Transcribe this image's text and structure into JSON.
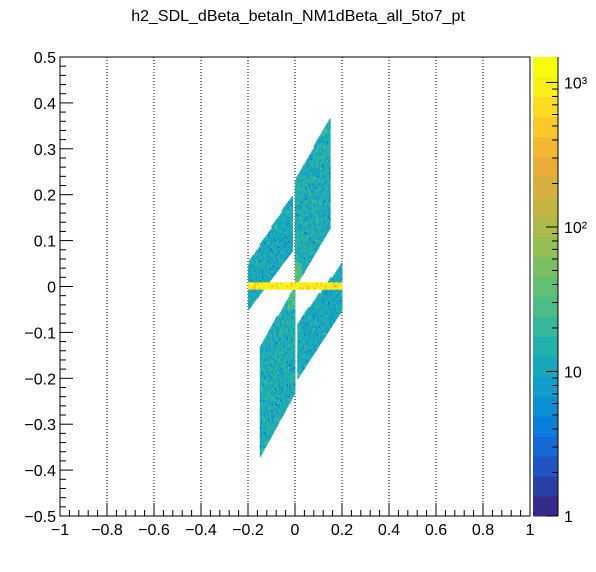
{
  "chart_data": {
    "type": "heatmap",
    "title": "h2_SDL_dBeta_betaIn_NM1dBeta_all_5to7_pt",
    "xlabel": "",
    "ylabel": "",
    "xlim": [
      -1,
      1
    ],
    "ylim": [
      -0.5,
      0.5
    ],
    "x_ticks": [
      -1,
      -0.8,
      -0.6,
      -0.4,
      -0.2,
      0,
      0.2,
      0.4,
      0.6,
      0.8,
      1
    ],
    "x_tick_labels": [
      "−1",
      "−0.8",
      "−0.6",
      "−0.4",
      "−0.2",
      "0",
      "0.2",
      "0.4",
      "0.6",
      "0.8",
      "1"
    ],
    "y_ticks": [
      -0.5,
      -0.4,
      -0.3,
      -0.2,
      -0.1,
      0,
      0.1,
      0.2,
      0.3,
      0.4,
      0.5
    ],
    "y_tick_labels": [
      "−0.5",
      "−0.4",
      "−0.3",
      "−0.2",
      "−0.1",
      "0",
      "0.1",
      "0.2",
      "0.3",
      "0.4",
      "0.5"
    ],
    "x_grid": true,
    "y_grid": false,
    "z_scale": "log",
    "z_range": [
      1,
      1500
    ],
    "z_ticks": [
      {
        "value": 1,
        "label": "1"
      },
      {
        "value": 10,
        "label": "10"
      },
      {
        "value": 100,
        "label": "10²"
      },
      {
        "value": 1000,
        "label": "10³"
      }
    ],
    "palette": [
      "#352a87",
      "#2a3fa4",
      "#1f55c2",
      "#1469d6",
      "#0b7ddd",
      "#0d8fd6",
      "#129dca",
      "#17a8bc",
      "#22b0ac",
      "#35b79b",
      "#4cbc88",
      "#63bf74",
      "#7cbf62",
      "#96bd54",
      "#aeb94a",
      "#c4b444",
      "#d7af3e",
      "#e8ac39",
      "#f5b733",
      "#fac82b",
      "#fcdc22",
      "#f9ee1a",
      "#f9fb0e"
    ],
    "regions": [
      {
        "name": "upper-left band",
        "x_range": [
          -0.2,
          -0.01
        ],
        "y_at_xmin": [
          -0.05,
          0.05
        ],
        "y_at_xmax": [
          0.08,
          0.2
        ],
        "density": 12
      },
      {
        "name": "upper-right band",
        "x_range": [
          0.0,
          0.15
        ],
        "y_at_xmin": [
          0.0,
          0.23
        ],
        "y_at_xmax": [
          0.13,
          0.37
        ],
        "density": 14
      },
      {
        "name": "lower-left band",
        "x_range": [
          -0.15,
          0.0
        ],
        "y_at_xmin": [
          -0.37,
          -0.13
        ],
        "y_at_xmax": [
          -0.23,
          0.0
        ],
        "density": 14
      },
      {
        "name": "lower-right band",
        "x_range": [
          0.01,
          0.2
        ],
        "y_at_xmin": [
          -0.2,
          -0.08
        ],
        "y_at_xmax": [
          -0.05,
          0.05
        ],
        "density": 12
      },
      {
        "name": "central ridge",
        "x_range": [
          -0.2,
          0.2
        ],
        "y_range": [
          -0.006,
          0.006
        ],
        "density": 1000
      }
    ]
  }
}
